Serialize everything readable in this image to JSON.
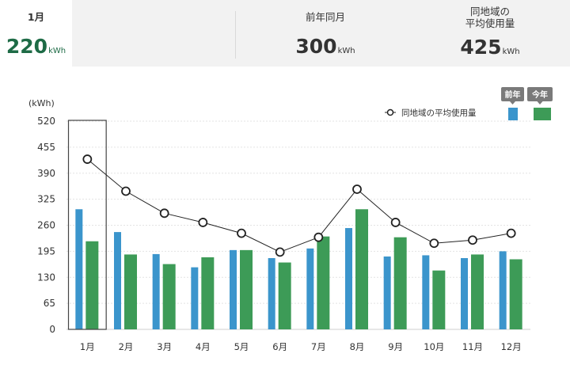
{
  "summary": {
    "current": {
      "label": "1月",
      "value": "220",
      "unit": "kWh"
    },
    "previous": {
      "label": "前年同月",
      "value": "300",
      "unit": "kWh"
    },
    "regional": {
      "label_line1": "同地域の",
      "label_line2": "平均使用量",
      "value": "425",
      "unit": "kWh"
    }
  },
  "colors": {
    "prev_year": "#3b95cc",
    "this_year": "#3d9b57",
    "accent_value": "#1e6b46",
    "line": "#222222"
  },
  "legend": {
    "average": "同地域の平均使用量",
    "prev_year": "前年",
    "this_year": "今年"
  },
  "chart_data": {
    "type": "bar",
    "yunit": "(kWh)",
    "ylim": [
      0,
      520
    ],
    "yticks": [
      0,
      65,
      130,
      195,
      260,
      325,
      390,
      455,
      520
    ],
    "categories": [
      "1月",
      "2月",
      "3月",
      "4月",
      "5月",
      "6月",
      "7月",
      "8月",
      "9月",
      "10月",
      "11月",
      "12月"
    ],
    "series": [
      {
        "name": "前年",
        "values": [
          300,
          243,
          188,
          155,
          198,
          178,
          202,
          253,
          182,
          185,
          178,
          195
        ]
      },
      {
        "name": "今年",
        "values": [
          220,
          187,
          163,
          180,
          198,
          167,
          232,
          300,
          230,
          147,
          187,
          175
        ]
      }
    ],
    "line": {
      "name": "同地域の平均使用量",
      "values": [
        425,
        345,
        290,
        267,
        240,
        193,
        230,
        350,
        267,
        215,
        223,
        240
      ]
    },
    "selected_index": 0,
    "grid": true
  }
}
